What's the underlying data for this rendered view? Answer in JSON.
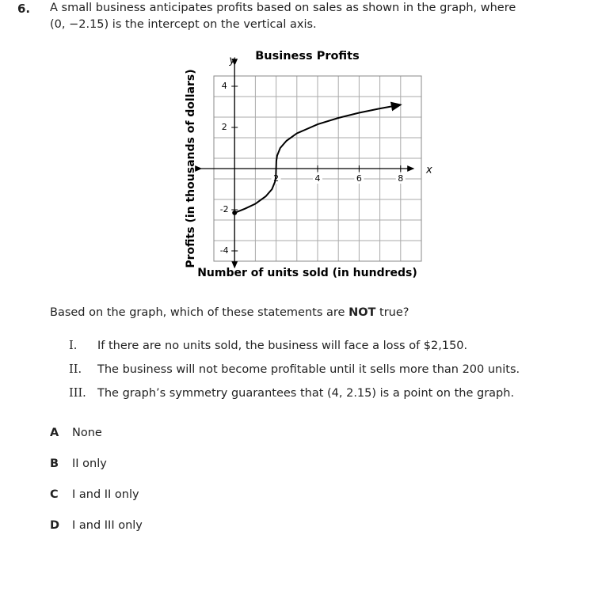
{
  "question": {
    "number": "6.",
    "stem_line1": "A small business anticipates profits based on sales as shown in the graph, where",
    "stem_line2": "(0, −2.15) is the intercept on the vertical axis.",
    "prompt_before": "Based on the graph, which of these statements are",
    "prompt_bold": "NOT",
    "prompt_after": "true?",
    "statements": [
      {
        "numeral": "I.",
        "text": "If there are no units sold, the business will face a loss of $2,150."
      },
      {
        "numeral": "II.",
        "text": "The business will not become profitable until it sells more than 200 units."
      },
      {
        "numeral": "III.",
        "text": "The graph’s symmetry guarantees that (4, 2.15) is a point on the graph."
      }
    ],
    "options": [
      {
        "letter": "A",
        "text": "None"
      },
      {
        "letter": "B",
        "text": "II only"
      },
      {
        "letter": "C",
        "text": "I and II only"
      },
      {
        "letter": "D",
        "text": "I and III only"
      }
    ]
  },
  "chart_data": {
    "type": "line",
    "title": "Business Profits",
    "x_label": "Number of units sold (in hundreds)",
    "y_label": "Profits (in thousands of dollars)",
    "x_axis_name": "x",
    "y_axis_name": "y",
    "x": [
      0,
      0.5,
      1,
      1.5,
      1.8,
      1.95,
      1.99,
      2,
      2.01,
      2.05,
      2.2,
      2.5,
      3,
      4,
      5,
      6,
      7,
      8
    ],
    "values": [
      -2.15,
      -1.95,
      -1.71,
      -1.35,
      -1.0,
      -0.63,
      -0.37,
      0,
      0.37,
      0.63,
      1.0,
      1.35,
      1.71,
      2.15,
      2.46,
      2.71,
      2.92,
      3.1
    ],
    "color": "#000000",
    "xlim": [
      -1,
      9
    ],
    "ylim": [
      -4.5,
      4.5
    ],
    "xticks": [
      2,
      4,
      6,
      8
    ],
    "yticks": [
      -4,
      -2,
      2,
      4
    ],
    "grid": true
  }
}
